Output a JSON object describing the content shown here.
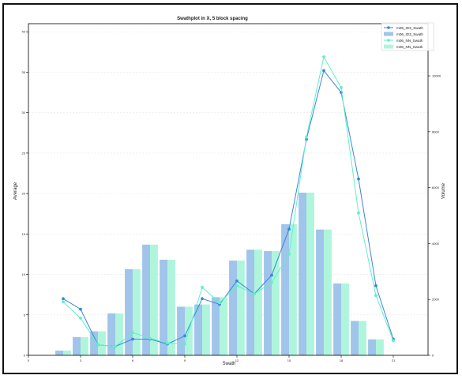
{
  "chart_data": {
    "type": "bar+line",
    "title": "Swathplot in X, 5 block spacing",
    "xlabel": "Swath",
    "ylabel": "Average",
    "y2label": "Volume",
    "xlim": [
      0,
      23
    ],
    "ylim": [
      0,
      41
    ],
    "y2lim": [
      0,
      11866
    ],
    "xticks": [
      0,
      3,
      6,
      9,
      12,
      15,
      18,
      21
    ],
    "yticks": [
      0,
      5,
      10,
      15,
      20,
      25,
      30,
      35,
      40
    ],
    "y2ticks": [
      0,
      2000,
      4000,
      6000,
      8000,
      10000
    ],
    "grid": true,
    "legend_position": "top-right",
    "x": [
      1,
      2,
      3,
      4,
      5,
      6,
      7,
      8,
      9,
      10,
      11,
      12,
      13,
      14,
      15,
      16,
      17,
      18,
      19,
      20,
      21,
      22
    ],
    "series": [
      {
        "name": "m06_ID3_Swath",
        "kind": "line",
        "axis": "left",
        "color": "#3a86d9",
        "x": [
          2,
          3,
          4,
          5,
          6,
          7,
          8,
          9,
          10,
          11,
          12,
          13,
          14,
          15,
          16,
          17,
          18,
          19,
          20,
          21
        ],
        "values": [
          7.0,
          5.7,
          1.3,
          1.1,
          2.0,
          2.0,
          1.4,
          2.4,
          7.0,
          6.3,
          9.2,
          7.6,
          9.9,
          15.6,
          26.7,
          35.2,
          32.5,
          21.8,
          8.6,
          2.0
        ]
      },
      {
        "name": "m06_ID3_Swath",
        "kind": "bar",
        "axis": "right",
        "color": "#a0c4ea",
        "x": [
          2,
          3,
          4,
          5,
          6,
          7,
          8,
          9,
          10,
          11,
          12,
          13,
          14,
          15,
          16,
          17,
          18,
          19,
          20
        ],
        "values": [
          170,
          650,
          860,
          1500,
          3080,
          3960,
          3420,
          1740,
          1820,
          2080,
          3390,
          3780,
          3730,
          4690,
          5820,
          4500,
          2570,
          1230,
          570
        ]
      },
      {
        "name": "m06_NN_Swath",
        "kind": "line",
        "axis": "left",
        "color": "#5ff0c8",
        "x": [
          2,
          3,
          4,
          5,
          6,
          7,
          8,
          9,
          10,
          11,
          12,
          13,
          14,
          15,
          16,
          17,
          18,
          19,
          20,
          21
        ],
        "values": [
          6.6,
          4.6,
          1.3,
          1.1,
          2.8,
          2.1,
          1.5,
          1.4,
          8.4,
          6.5,
          8.6,
          7.6,
          9.0,
          12.5,
          27.0,
          36.9,
          33.1,
          17.6,
          7.4,
          1.8
        ]
      },
      {
        "name": "m06_NN_Swath",
        "kind": "bar",
        "axis": "right",
        "color": "#aef5dc",
        "x": [
          2,
          3,
          4,
          5,
          6,
          7,
          8,
          9,
          10,
          11,
          12,
          13,
          14,
          15,
          16,
          17,
          18,
          19,
          20
        ],
        "values": [
          170,
          650,
          860,
          1500,
          3080,
          3960,
          3420,
          1740,
          1820,
          2080,
          3390,
          3780,
          3730,
          4690,
          5820,
          4500,
          2570,
          1230,
          570
        ]
      }
    ]
  }
}
